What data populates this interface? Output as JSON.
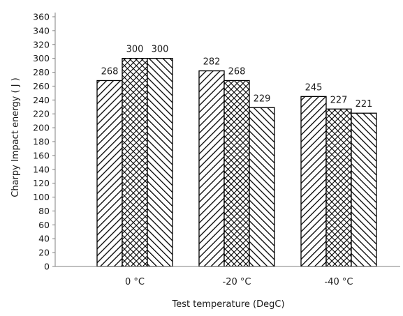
{
  "chart_data": {
    "type": "bar",
    "title": "",
    "xlabel": "Test temperature (DegC)",
    "ylabel": "Charpy Impact energy ( J )",
    "categories": [
      "0 °C",
      "-20 °C",
      "-40 °C"
    ],
    "series": [
      {
        "values": [
          268,
          282,
          245
        ],
        "data_labels": [
          "268",
          "282",
          "245"
        ],
        "pattern": "diagonal-up"
      },
      {
        "values": [
          300,
          268,
          227
        ],
        "data_labels": [
          "300",
          "268",
          "227"
        ],
        "pattern": "crosshatch"
      },
      {
        "values": [
          300,
          229,
          221
        ],
        "data_labels": [
          "300",
          "229",
          "221"
        ],
        "pattern": "diagonal-down"
      }
    ],
    "ylim": [
      0,
      360
    ],
    "yticks": [
      "0",
      "20",
      "40",
      "60",
      "80",
      "100",
      "120",
      "140",
      "160",
      "180",
      "200",
      "220",
      "240",
      "260",
      "280",
      "300",
      "320",
      "340",
      "360"
    ],
    "grid": false,
    "legend": "none"
  }
}
